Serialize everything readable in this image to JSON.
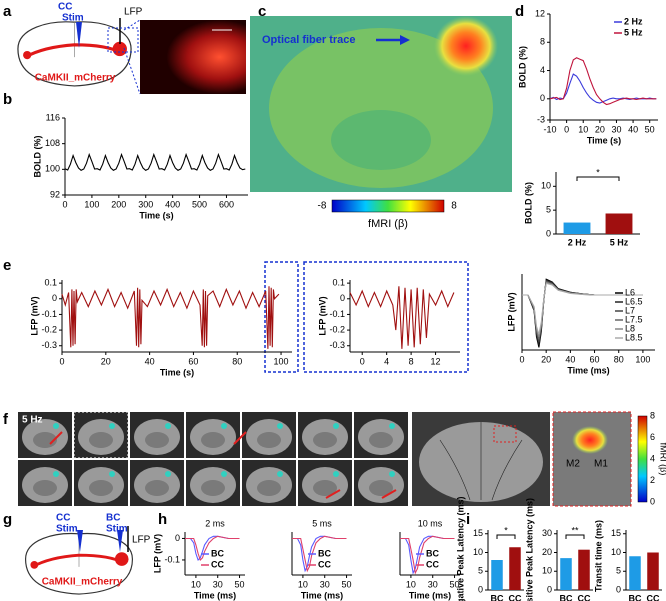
{
  "panel_labels": [
    "a",
    "b",
    "c",
    "d",
    "e",
    "f",
    "g",
    "h",
    "i"
  ],
  "panel_a": {
    "stim_site": "CC",
    "stim": "Stim",
    "recording": "LFP",
    "virus": "CaMKII_mCherry"
  },
  "panel_c": {
    "annotation": "Optical fiber trace",
    "colorbar_label": "fMRI (β)",
    "colorbar_ticks": [
      -8,
      8
    ]
  },
  "panel_f": {
    "condition": "5 Hz",
    "regions": [
      "M2",
      "M1"
    ],
    "colorbar_label": "fMRI (β)",
    "colorbar_ticks": [
      0,
      2,
      4,
      6,
      8
    ]
  },
  "panel_g": {
    "stim_site_1": "CC",
    "stim_1": "Stim",
    "stim_site_2": "BC",
    "stim_2": "Stim",
    "recording": "LFP",
    "virus": "CaMKII_mCherry"
  },
  "chart_data": [
    {
      "type": "line",
      "ylabel": "BOLD (%)",
      "xlabel": "Time (s)",
      "x": [
        0,
        10,
        20,
        30,
        40,
        50,
        60,
        70,
        80,
        90,
        100,
        110,
        120,
        130,
        140,
        150,
        160,
        170,
        180,
        190,
        200,
        210,
        220,
        230,
        240,
        250,
        260,
        270,
        280,
        290,
        300,
        310,
        320,
        330,
        340,
        350,
        360,
        370,
        380,
        390,
        400,
        410,
        420,
        430,
        440,
        450,
        460,
        470,
        480,
        490,
        500,
        510,
        520,
        530,
        540,
        550,
        560,
        570,
        580,
        590,
        600,
        610,
        620,
        630,
        640,
        650,
        660,
        670
      ],
      "values": [
        100.2,
        99.8,
        101.6,
        104.3,
        102.1,
        100.4,
        99.7,
        100.1,
        101.9,
        104.6,
        102.4,
        100.1,
        100.2,
        99.8,
        101.6,
        104.3,
        102.1,
        100.4,
        99.7,
        100.1,
        101.9,
        104.6,
        102.4,
        100.1,
        100.2,
        99.8,
        101.6,
        104.3,
        102.1,
        100.4,
        99.7,
        100.1,
        101.9,
        104.6,
        102.4,
        100.1,
        100.2,
        99.8,
        101.6,
        104.3,
        102.1,
        100.4,
        99.7,
        100.1,
        101.9,
        104.6,
        102.4,
        100.1,
        100.2,
        99.8,
        101.6,
        104.3,
        102.1,
        100.4,
        99.7,
        100.1,
        101.9,
        104.6,
        102.4,
        100.1,
        100.2,
        99.8,
        101.6,
        104.3,
        102.1,
        100.4,
        99.9,
        100.1
      ],
      "color": "#000000",
      "xlim": [
        0,
        680
      ],
      "xticks": [
        0,
        100,
        200,
        300,
        400,
        500,
        600
      ],
      "ylim": [
        92,
        116
      ],
      "yticks": [
        92,
        100,
        108,
        116
      ]
    },
    {
      "type": "line",
      "ylabel": "BOLD (%)",
      "xlabel": "Time (s)",
      "x": [
        -10,
        -8,
        -6,
        -4,
        -2,
        0,
        2,
        4,
        6,
        8,
        10,
        12,
        14,
        16,
        18,
        20,
        22,
        24,
        26,
        28,
        30,
        32,
        34,
        36,
        38,
        40,
        42,
        44,
        46,
        48,
        50,
        52,
        54
      ],
      "series": [
        {
          "name": "2 Hz",
          "color": "#3a3adb",
          "values": [
            0,
            0.2,
            -0.1,
            0.1,
            0,
            0.8,
            2.2,
            3.5,
            3.2,
            2.5,
            1.6,
            0.8,
            0.2,
            -0.2,
            -0.5,
            -0.6,
            -0.4,
            -0.2,
            0,
            0.1,
            0,
            0,
            0.1,
            0,
            -0.1,
            0,
            0.1,
            0,
            0,
            0,
            0.1,
            0,
            0
          ]
        },
        {
          "name": "5 Hz",
          "color": "#c0143c",
          "values": [
            0,
            0.1,
            0.2,
            -0.1,
            0,
            1.5,
            4,
            5.5,
            5.8,
            5.6,
            5.4,
            4.2,
            2.8,
            1.6,
            0.6,
            0,
            -0.5,
            -0.8,
            -0.7,
            -0.5,
            -0.3,
            -0.1,
            0,
            0.1,
            0,
            0,
            -0.1,
            0,
            0.1,
            0,
            0,
            0,
            0
          ]
        }
      ],
      "xlim": [
        -10,
        55
      ],
      "xticks": [
        -10,
        0,
        10,
        20,
        30,
        40,
        50
      ],
      "ylim": [
        -3,
        12
      ],
      "yticks": [
        -3,
        0,
        4,
        8,
        12
      ],
      "legend": "upper right"
    },
    {
      "type": "bar",
      "ylabel": "BOLD (%)",
      "categories": [
        "2 Hz",
        "5 Hz"
      ],
      "values": [
        2.4,
        4.3
      ],
      "colors": [
        "#1e9be6",
        "#a00f0f"
      ],
      "ylim": [
        0,
        13
      ],
      "yticks": [
        0,
        5,
        10
      ],
      "annotation": "*"
    },
    {
      "type": "line",
      "ylabel": "LFP (mV)",
      "xlabel": "Time (s)",
      "x": [
        0,
        1.5,
        3,
        4,
        4.5,
        5,
        5.5,
        6,
        6.5,
        7,
        9,
        12,
        15,
        18,
        21,
        24,
        27,
        30,
        33,
        34,
        34.5,
        35,
        35.5,
        36,
        36.5,
        39,
        42,
        45,
        48,
        51,
        54,
        57,
        60,
        63,
        64,
        64.5,
        65,
        65.5,
        66,
        66.5,
        69,
        72,
        75,
        78,
        81,
        84,
        87,
        90,
        93,
        94,
        94.5,
        95,
        95.5,
        96,
        96.5,
        97,
        99
      ],
      "values": [
        0.03,
        -0.04,
        0.04,
        -0.31,
        0.06,
        -0.3,
        0.05,
        -0.29,
        0.06,
        -0.02,
        0.04,
        -0.05,
        0.05,
        -0.04,
        0.06,
        -0.05,
        0.04,
        -0.06,
        0.05,
        -0.3,
        0.07,
        -0.31,
        0.06,
        -0.29,
        -0.01,
        -0.05,
        0.05,
        -0.04,
        0.06,
        -0.05,
        0.04,
        -0.06,
        0.05,
        -0.04,
        -0.3,
        0.06,
        -0.31,
        0.05,
        -0.3,
        0.02,
        0.05,
        -0.05,
        0.06,
        -0.04,
        0.05,
        -0.06,
        0.04,
        -0.05,
        0.05,
        -0.32,
        0.08,
        -0.3,
        0.07,
        -0.31,
        0.06,
        0,
        0.03
      ],
      "color": "#a01010",
      "xlim": [
        0,
        105
      ],
      "xticks": [
        0,
        20,
        40,
        60,
        80,
        100
      ],
      "ylim": [
        -0.34,
        0.12
      ],
      "yticks": [
        -0.3,
        -0.2,
        -0.1,
        0,
        0.1
      ]
    },
    {
      "type": "line",
      "ylabel": "LFP (mV)",
      "x": [
        -2,
        -1,
        0,
        1,
        2,
        3,
        4,
        5,
        5.5,
        6,
        6.5,
        7,
        7.5,
        8,
        8.5,
        9,
        9.5,
        10,
        10.5,
        11,
        12,
        13,
        14,
        15
      ],
      "values": [
        0.04,
        -0.04,
        0.05,
        -0.05,
        0.04,
        -0.05,
        0.05,
        -0.04,
        -0.2,
        0.08,
        -0.32,
        0.07,
        -0.3,
        0.06,
        -0.31,
        0.07,
        -0.29,
        0.06,
        -0.25,
        0.03,
        -0.04,
        0.05,
        -0.05,
        0.04
      ],
      "color": "#a01010",
      "xlim": [
        -2,
        16
      ],
      "xticks": [
        0,
        4,
        8,
        12
      ],
      "ylim": [
        -0.34,
        0.12
      ],
      "yticks": [
        -0.3,
        -0.2,
        -0.1,
        0,
        0.1
      ]
    },
    {
      "type": "line",
      "ylabel": "LFP (mV)",
      "xlabel": "Time (ms)",
      "x": [
        0,
        5,
        10,
        12,
        14,
        16,
        18,
        20,
        25,
        30,
        40,
        50,
        60,
        80,
        100
      ],
      "series": [
        {
          "name": "L6",
          "color": "#000000",
          "values": [
            0,
            0,
            -0.3,
            -0.8,
            -1,
            -0.7,
            -0.1,
            0.3,
            0.25,
            0.12,
            0.05,
            0.02,
            0,
            0,
            0
          ]
        },
        {
          "name": "L6.5",
          "color": "#222222",
          "values": [
            0,
            0,
            -0.28,
            -0.76,
            -0.95,
            -0.66,
            -0.1,
            0.28,
            0.24,
            0.11,
            0.05,
            0.02,
            0,
            0,
            0
          ]
        },
        {
          "name": "L7",
          "color": "#444444",
          "values": [
            0,
            0,
            -0.27,
            -0.72,
            -0.9,
            -0.63,
            -0.09,
            0.27,
            0.22,
            0.1,
            0.04,
            0.02,
            0,
            0,
            0
          ]
        },
        {
          "name": "L7.5",
          "color": "#666666",
          "values": [
            0,
            0,
            -0.25,
            -0.68,
            -0.85,
            -0.6,
            -0.08,
            0.25,
            0.21,
            0.1,
            0.04,
            0.02,
            0,
            0,
            0
          ]
        },
        {
          "name": "L8",
          "color": "#888888",
          "values": [
            0,
            0,
            -0.24,
            -0.64,
            -0.8,
            -0.56,
            -0.08,
            0.24,
            0.2,
            0.09,
            0.04,
            0.01,
            0,
            0,
            0
          ]
        },
        {
          "name": "L8.5",
          "color": "#aaaaaa",
          "values": [
            0,
            0,
            -0.22,
            -0.6,
            -0.75,
            -0.52,
            -0.07,
            0.22,
            0.19,
            0.09,
            0.03,
            0.01,
            0,
            0,
            0
          ]
        }
      ],
      "xlim": [
        0,
        110
      ],
      "xticks": [
        0,
        20,
        40,
        60,
        80,
        100
      ],
      "ylim": [
        -1.05,
        0.4
      ],
      "legend": "lower right"
    },
    {
      "type": "line",
      "title": "2 ms",
      "ylabel": "LFP (mV)",
      "xlabel": "Time (ms)",
      "x": [
        0,
        5,
        8,
        10,
        12,
        14,
        16,
        18,
        22,
        26,
        30,
        40,
        50
      ],
      "series": [
        {
          "name": "BC",
          "color": "#5a5aff",
          "values": [
            0,
            0,
            -0.02,
            -0.07,
            -0.1,
            -0.09,
            -0.06,
            -0.03,
            0,
            0.01,
            0.01,
            0,
            0
          ]
        },
        {
          "name": "CC",
          "color": "#e0406a",
          "values": [
            0,
            0,
            0,
            -0.03,
            -0.07,
            -0.1,
            -0.09,
            -0.06,
            -0.02,
            0,
            0.01,
            0,
            0
          ]
        }
      ],
      "xlim": [
        0,
        55
      ],
      "xticks": [
        10,
        30,
        50
      ],
      "ylim": [
        -0.17,
        0.03
      ],
      "yticks": [
        -0.1,
        0
      ],
      "legend": "lower right"
    },
    {
      "type": "line",
      "title": "5 ms",
      "xlabel": "Time (ms)",
      "x": [
        0,
        5,
        8,
        10,
        12,
        14,
        16,
        18,
        22,
        26,
        30,
        40,
        50
      ],
      "series": [
        {
          "name": "BC",
          "color": "#5a5aff",
          "values": [
            0,
            0,
            -0.03,
            -0.1,
            -0.15,
            -0.13,
            -0.08,
            -0.04,
            0,
            0.01,
            0.01,
            0,
            0
          ]
        },
        {
          "name": "CC",
          "color": "#e0406a",
          "values": [
            0,
            0,
            0,
            -0.05,
            -0.1,
            -0.15,
            -0.13,
            -0.08,
            -0.02,
            0,
            0.01,
            0,
            0
          ]
        }
      ],
      "xlim": [
        0,
        55
      ],
      "xticks": [
        10,
        30,
        50
      ],
      "ylim": [
        -0.17,
        0.03
      ],
      "legend": "lower right"
    },
    {
      "type": "line",
      "title": "10 ms",
      "xlabel": "Time (ms)",
      "x": [
        0,
        5,
        8,
        10,
        12,
        14,
        16,
        18,
        22,
        26,
        30,
        40,
        50
      ],
      "series": [
        {
          "name": "BC",
          "color": "#5a5aff",
          "values": [
            0,
            0,
            -0.03,
            -0.1,
            -0.16,
            -0.14,
            -0.09,
            -0.04,
            0,
            0.01,
            0.01,
            0,
            0
          ]
        },
        {
          "name": "CC",
          "color": "#e0406a",
          "values": [
            0,
            0,
            0,
            -0.05,
            -0.1,
            -0.16,
            -0.14,
            -0.09,
            -0.02,
            0,
            0.01,
            0,
            0
          ]
        }
      ],
      "xlim": [
        0,
        55
      ],
      "xticks": [
        10,
        30,
        50
      ],
      "ylim": [
        -0.17,
        0.03
      ],
      "legend": "lower right"
    },
    {
      "type": "bar",
      "ylabel": "Negative Peak Latency (ms)",
      "categories": [
        "BC",
        "CC"
      ],
      "values": [
        8,
        11.4
      ],
      "colors": [
        "#1e9be6",
        "#a00f0f"
      ],
      "ylim": [
        0,
        16
      ],
      "yticks": [
        0,
        5,
        10,
        15
      ],
      "annotation": "*"
    },
    {
      "type": "bar",
      "ylabel": "Positive Peak Latency (ms)",
      "categories": [
        "BC",
        "CC"
      ],
      "values": [
        17,
        21.5
      ],
      "colors": [
        "#1e9be6",
        "#a00f0f"
      ],
      "ylim": [
        0,
        32
      ],
      "yticks": [
        0,
        10,
        20,
        30
      ],
      "annotation": "**"
    },
    {
      "type": "bar",
      "ylabel": "Transit time (ms)",
      "categories": [
        "BC",
        "CC"
      ],
      "values": [
        9,
        10
      ],
      "colors": [
        "#1e9be6",
        "#a00f0f"
      ],
      "ylim": [
        0,
        16
      ],
      "yticks": [
        0,
        5,
        10,
        15
      ]
    }
  ]
}
